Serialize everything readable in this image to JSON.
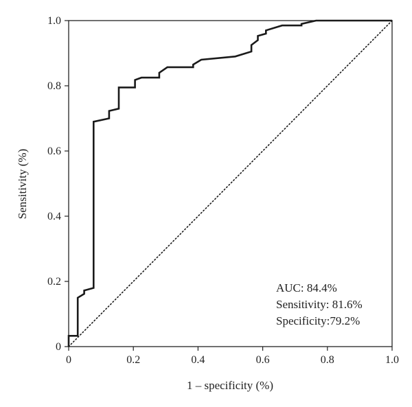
{
  "chart_data": {
    "type": "line",
    "title": "",
    "xlabel": "1 – specificity (%)",
    "ylabel": "Sensitivity (%)",
    "xlim": [
      0,
      1
    ],
    "ylim": [
      0,
      1
    ],
    "x_ticks": [
      "0",
      "0.2",
      "0.4",
      "0.6",
      "0.8",
      "1.0"
    ],
    "y_ticks": [
      "0",
      "0.2",
      "0.4",
      "0.6",
      "0.8",
      "1.0"
    ],
    "grid": false,
    "annotations": [
      "AUC: 84.4%",
      "Sensitivity: 81.6%",
      "Specificity:79.2%"
    ],
    "series": [
      {
        "style": "solid",
        "color": "#1a1a1a",
        "x": [
          0,
          0,
          0.028,
          0.028,
          0.048,
          0.048,
          0.077,
          0.077,
          0.125,
          0.125,
          0.155,
          0.155,
          0.205,
          0.205,
          0.225,
          0.225,
          0.28,
          0.28,
          0.305,
          0.305,
          0.385,
          0.385,
          0.41,
          0.41,
          0.515,
          0.515,
          0.565,
          0.565,
          0.585,
          0.585,
          0.61,
          0.61,
          0.66,
          0.66,
          0.72,
          0.72,
          0.765,
          0.765,
          1.0
        ],
        "y": [
          0,
          0.033,
          0.033,
          0.15,
          0.162,
          0.172,
          0.18,
          0.69,
          0.7,
          0.723,
          0.73,
          0.795,
          0.795,
          0.818,
          0.825,
          0.825,
          0.825,
          0.84,
          0.857,
          0.857,
          0.857,
          0.865,
          0.88,
          0.88,
          0.89,
          0.89,
          0.905,
          0.925,
          0.94,
          0.953,
          0.96,
          0.97,
          0.985,
          0.985,
          0.985,
          0.99,
          1.0,
          1.0,
          1.0
        ]
      },
      {
        "style": "dotted",
        "color": "#1a1a1a",
        "x": [
          0,
          1
        ],
        "y": [
          0,
          1
        ]
      }
    ]
  }
}
